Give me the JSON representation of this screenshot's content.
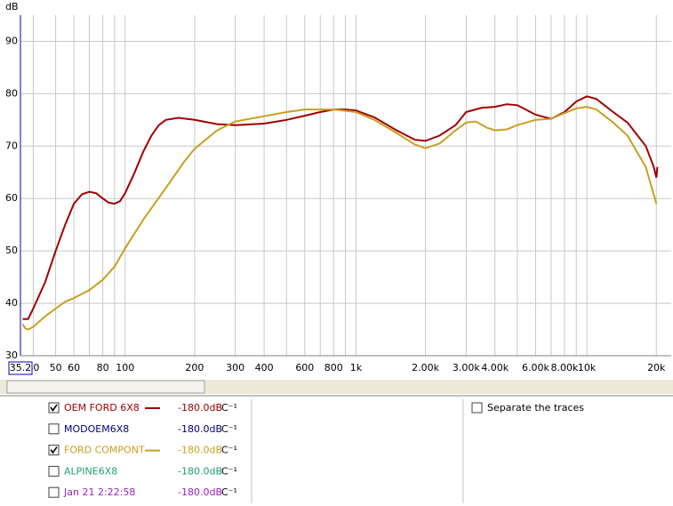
{
  "chart_data": {
    "type": "line",
    "y_label": "dB",
    "x_log": true,
    "grid": true,
    "xlim": [
      35.2,
      23200
    ],
    "ylim": [
      30,
      95
    ],
    "x_start_label": {
      "value": 35.2,
      "label": "35.2"
    },
    "xticks": [
      40,
      50,
      60,
      80,
      100,
      200,
      300,
      400,
      600,
      800,
      {
        "value": 1000,
        "label": "1k"
      },
      {
        "value": 2000,
        "label": "2.00k"
      },
      {
        "value": 3000,
        "label": "3.00k"
      },
      {
        "value": 4000,
        "label": "4.00k"
      },
      {
        "value": 6000,
        "label": "6.00k"
      },
      {
        "value": 8000,
        "label": "8.00k"
      },
      {
        "value": 10000,
        "label": "10k"
      },
      {
        "value": 20000,
        "label": "20k"
      }
    ],
    "xminor": [
      70,
      90,
      500,
      700,
      900,
      5000,
      7000,
      9000
    ],
    "yticks": [
      30,
      40,
      50,
      60,
      70,
      80,
      90
    ],
    "series": [
      {
        "name": "OEM FORD 6X8",
        "color": "#a00000",
        "checked": true,
        "offset": "-180.0dB",
        "unit": "C⁻¹",
        "x": [
          36,
          38,
          40,
          45,
          50,
          55,
          60,
          65,
          70,
          75,
          80,
          85,
          90,
          95,
          100,
          110,
          120,
          130,
          140,
          150,
          170,
          200,
          250,
          300,
          400,
          500,
          600,
          700,
          800,
          900,
          1000,
          1200,
          1500,
          1800,
          2000,
          2300,
          2700,
          3000,
          3500,
          4000,
          4500,
          5000,
          6000,
          7000,
          8000,
          9000,
          10000,
          11000,
          13000,
          15000,
          18000,
          19500,
          20000,
          20200
        ],
        "values": [
          37,
          37,
          39,
          44,
          50,
          55,
          59,
          60.8,
          61.3,
          61,
          60,
          59.2,
          59,
          59.5,
          61,
          65,
          69,
          72,
          74,
          75,
          75.4,
          75,
          74.2,
          74,
          74.3,
          75,
          75.8,
          76.5,
          77,
          77,
          76.8,
          75.5,
          73,
          71.2,
          71,
          72,
          74,
          76.5,
          77.3,
          77.5,
          78,
          77.8,
          76,
          75.2,
          76.5,
          78.5,
          79.5,
          79,
          76.5,
          74.5,
          70,
          66,
          64,
          66
        ]
      },
      {
        "name": "MODOEM6X8",
        "color": "#000080",
        "checked": false,
        "offset": "-180.0dB",
        "unit": "C⁻¹"
      },
      {
        "name": "FORD COMPONT",
        "color": "#c8a020",
        "checked": true,
        "offset": "-180.0dB",
        "unit": "C⁻¹",
        "x": [
          36,
          37,
          38,
          40,
          45,
          50,
          55,
          60,
          70,
          80,
          90,
          100,
          120,
          150,
          180,
          200,
          250,
          300,
          400,
          500,
          600,
          800,
          1000,
          1200,
          1500,
          1800,
          2000,
          2300,
          2700,
          3000,
          3300,
          3700,
          4000,
          4500,
          5000,
          6000,
          7000,
          8000,
          9000,
          10000,
          11000,
          13000,
          15000,
          18000,
          20000
        ],
        "values": [
          36,
          35.2,
          35,
          35.5,
          37.5,
          39,
          40.3,
          41,
          42.5,
          44.5,
          47,
          50.5,
          56,
          62,
          67,
          69.5,
          73,
          74.7,
          75.7,
          76.5,
          77,
          77,
          76.5,
          75,
          72.5,
          70.3,
          69.6,
          70.5,
          73,
          74.5,
          74.7,
          73.5,
          73,
          73.2,
          74,
          75,
          75.2,
          76.3,
          77.2,
          77.5,
          77,
          74.5,
          72,
          66,
          59
        ]
      },
      {
        "name": "ALPINE6X8",
        "color": "#20a070",
        "checked": false,
        "offset": "-180.0dB",
        "unit": "C⁻¹"
      },
      {
        "name": "Jan 21 2:22:58",
        "color": "#a020c0",
        "checked": false,
        "offset": "-180.0dB",
        "unit": "C⁻¹"
      }
    ]
  },
  "separate_traces": {
    "label": "Separate the traces",
    "checked": false
  }
}
